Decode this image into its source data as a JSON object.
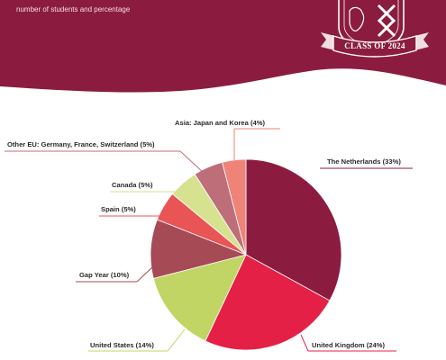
{
  "header": {
    "subtitle": "number of students and percentage",
    "badge_text": "CLASS OF 2024"
  },
  "colors": {
    "maroon": "#8b1c40",
    "white": "#ffffff"
  },
  "chart_data": {
    "type": "pie",
    "slices": [
      {
        "label": "The Netherlands (33%)",
        "value": 33,
        "color": "#8b1c40"
      },
      {
        "label": "United Kingdom (24%)",
        "value": 24,
        "color": "#e42046"
      },
      {
        "label": "United States (14%)",
        "value": 14,
        "color": "#c1d565"
      },
      {
        "label": "Gap Year (10%)",
        "value": 10,
        "color": "#a64a56"
      },
      {
        "label": "Spain (5%)",
        "value": 5,
        "color": "#e95455"
      },
      {
        "label": "Canada (5%)",
        "value": 5,
        "color": "#d6e290"
      },
      {
        "label": "Other EU: Germany, France, Switzerland (5%)",
        "value": 5,
        "color": "#bd6e79"
      },
      {
        "label": "Asia: Japan and Korea (4%)",
        "value": 4,
        "color": "#ef8378"
      }
    ]
  }
}
